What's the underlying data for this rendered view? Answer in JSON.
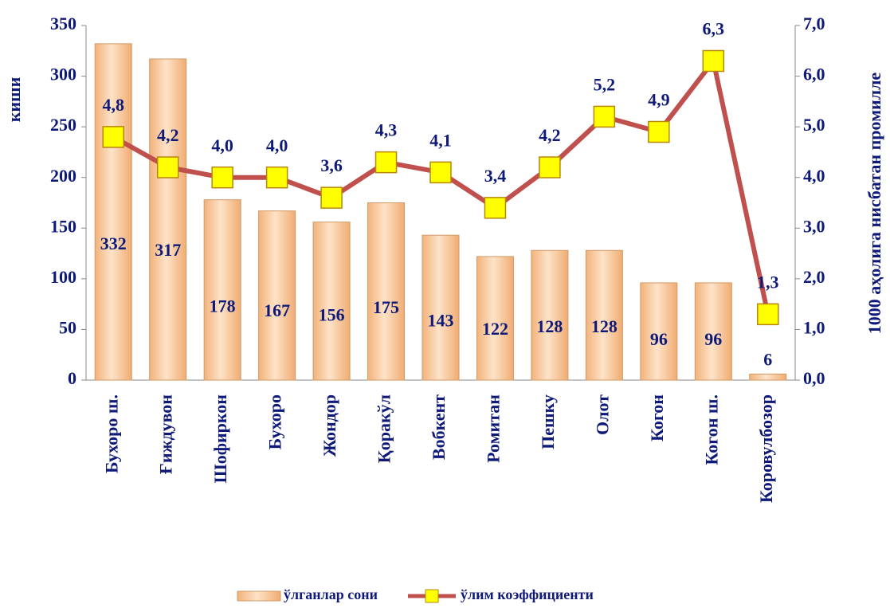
{
  "chart_data": {
    "type": "bar",
    "categories": [
      "Бухоро ш.",
      "Ғиждувон",
      "Шофиркон",
      "Бухоро",
      "Жондор",
      "Қоракўл",
      "Вобкент",
      "Ромитан",
      "Пешку",
      "Олот",
      "Когон",
      "Когон ш.",
      "Коровулбозор"
    ],
    "series": [
      {
        "name": "ўлганлар сони",
        "type": "bar",
        "color": "#f6c08e",
        "values": [
          332,
          317,
          178,
          167,
          156,
          175,
          143,
          122,
          128,
          128,
          96,
          96,
          6
        ]
      },
      {
        "name": "ўлим коэффициенти",
        "type": "line",
        "axis": "y2",
        "color": "#c0504d",
        "marker_color": "#ffff00",
        "values": [
          4.8,
          4.2,
          4.0,
          4.0,
          3.6,
          4.3,
          4.1,
          3.4,
          4.2,
          5.2,
          4.9,
          6.3,
          1.3
        ],
        "value_labels": [
          "4,8",
          "4,2",
          "4,0",
          "4,0",
          "3,6",
          "4,3",
          "4,1",
          "3,4",
          "4,2",
          "5,2",
          "4,9",
          "6,3",
          "1,3"
        ]
      }
    ],
    "y_label": "киши",
    "y2_label": "1000 аҳолига нисбатан промилле",
    "ylim": [
      0,
      350
    ],
    "yticks": [
      0,
      50,
      100,
      150,
      200,
      250,
      300,
      350
    ],
    "y2lim": [
      0,
      7
    ],
    "y2ticks": [
      {
        "value": 0,
        "label": "0,0"
      },
      {
        "value": 1,
        "label": "1,0"
      },
      {
        "value": 2,
        "label": "2,0"
      },
      {
        "value": 3,
        "label": "3,0"
      },
      {
        "value": 4,
        "label": "4,0"
      },
      {
        "value": 5,
        "label": "5,0"
      },
      {
        "value": 6,
        "label": "6,0"
      },
      {
        "value": 7,
        "label": "7,0"
      }
    ],
    "legend": "bottom"
  }
}
